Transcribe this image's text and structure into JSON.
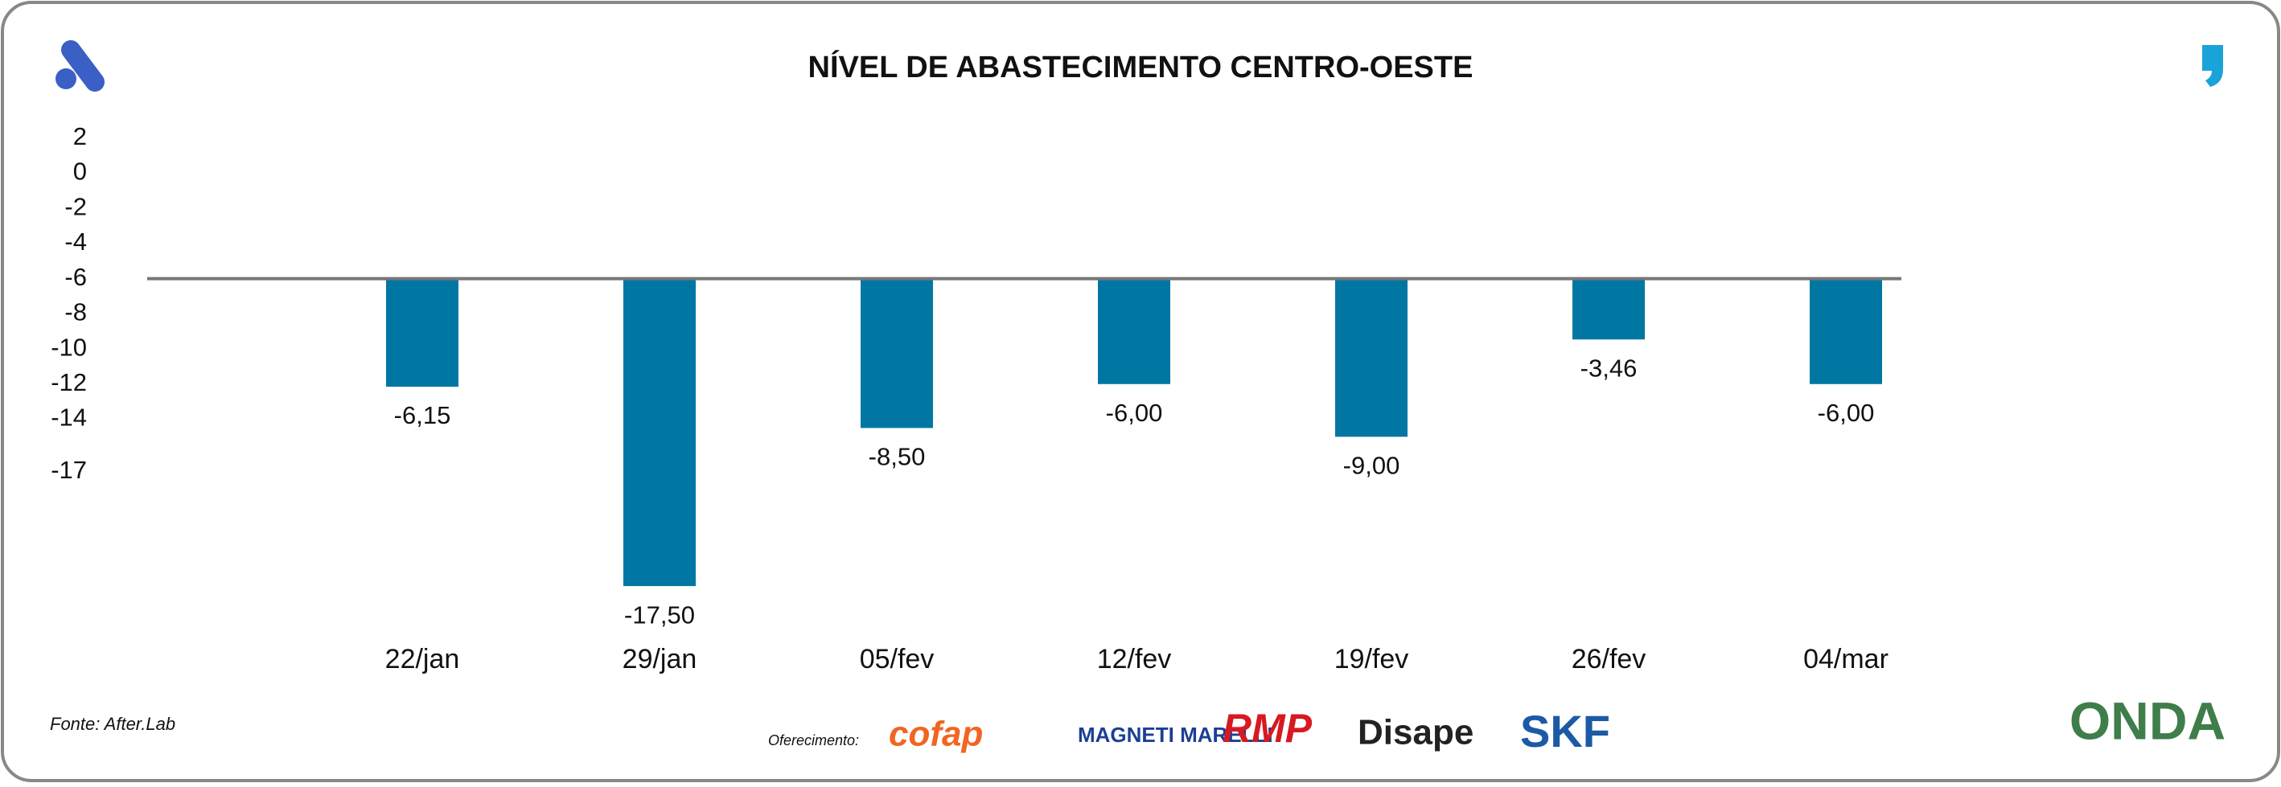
{
  "chart_data": {
    "type": "bar",
    "title": "NÍVEL DE ABASTECIMENTO CENTRO-OESTE",
    "categories": [
      "22/jan",
      "29/jan",
      "05/fev",
      "12/fev",
      "19/fev",
      "26/fev",
      "04/mar"
    ],
    "values": [
      -6.15,
      -17.5,
      -8.5,
      -6,
      -9,
      -3.46,
      -6
    ],
    "value_labels": [
      "-6,15",
      "-17,50",
      "-8,50",
      "-6,00",
      "-9,00",
      "-3,46",
      "-6,00"
    ],
    "color": "#0077a3",
    "baseline": -6,
    "grid": false,
    "ylim": [
      -24,
      3
    ],
    "yticks": [
      2,
      0,
      -2,
      -4,
      -6,
      -8,
      -10,
      -12,
      -14,
      -17
    ]
  },
  "footer": {
    "source": "Fonte: After.Lab",
    "sponsor_label": "Oferecimento:",
    "sponsors": [
      "cofap",
      "MAGNETI MARELLI",
      "RMP",
      "Disape",
      "SKF"
    ],
    "brand": "ONDA"
  }
}
